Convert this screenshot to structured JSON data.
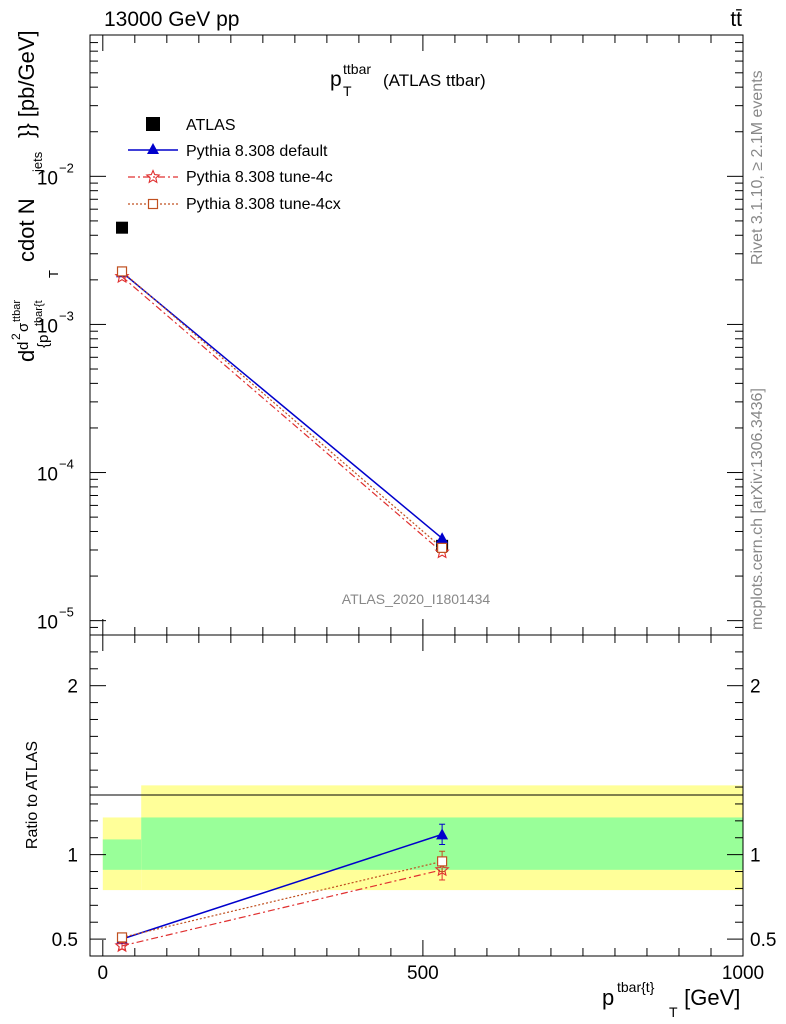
{
  "header": {
    "left": "13000 GeV pp",
    "right": "tt̄"
  },
  "side_labels": {
    "rivet": "Rivet 3.1.10, ≥ 2.1M events",
    "mcplots": "mcplots.cern.ch [arXiv:1306.3436]"
  },
  "analysis_id": "ATLAS_2020_I1801434",
  "plot_title": {
    "main": "p",
    "sup": "ttbar",
    "sub": "T",
    "rest": "(ATLAS ttbar)"
  },
  "y_axis_label": {
    "part1": "d",
    "part2": "d",
    "sigma": "σ",
    "sigma_sup": "ttbar",
    "sq": "2",
    "braced_p": "{p",
    "tbar": "tbar{t",
    "T_sub": "T",
    "cdot": "cdot N",
    "jets": "jets",
    "tail": "}} [pb/GeV]"
  },
  "x_axis_label": {
    "main": "p",
    "sup": "tbar{t}",
    "sub": "T",
    "tail": " [GeV]"
  },
  "ratio_label": "Ratio to ATLAS",
  "legend": [
    {
      "label": "ATLAS",
      "color": "#000000",
      "marker": "square-filled"
    },
    {
      "label": "Pythia 8.308 default",
      "color": "#0000cc",
      "marker": "triangle-filled"
    },
    {
      "label": "Pythia 8.308 tune-4c",
      "color": "#e03030",
      "marker": "star-open"
    },
    {
      "label": "Pythia 8.308 tune-4cx",
      "color": "#c05020",
      "marker": "square-open"
    }
  ],
  "chart_data": {
    "type": "scatter",
    "x_unit": "GeV",
    "main": {
      "yscale": "log",
      "ylim": [
        8e-06,
        0.09
      ],
      "y_ticks": [
        {
          "value": 1e-05,
          "base": "10",
          "exp": "−5"
        },
        {
          "value": 0.0001,
          "base": "10",
          "exp": "−4"
        },
        {
          "value": 0.001,
          "base": "10",
          "exp": "−3"
        },
        {
          "value": 0.01,
          "base": "10",
          "exp": "−2"
        }
      ]
    },
    "ratio": {
      "ylim": [
        0.4,
        2.3
      ],
      "y_ticks": [
        0.5,
        1,
        2
      ],
      "y_tick_labels": [
        "0.5",
        "1",
        "2"
      ]
    },
    "xlim": [
      -20,
      1000
    ],
    "x_ticks": [
      0,
      500,
      1000
    ],
    "x_tick_labels": [
      "0",
      "500",
      "1000"
    ],
    "bins": [
      {
        "x_low": 0,
        "x_high": 60,
        "x_center": 30
      },
      {
        "x_low": 60,
        "x_high": 1000,
        "x_center": 530
      }
    ],
    "series": [
      {
        "name": "ATLAS",
        "color": "#000000",
        "marker": "square-filled",
        "x": [
          30,
          530
        ],
        "y": [
          0.0045,
          3.2e-05
        ]
      },
      {
        "name": "Pythia 8.308 default",
        "color": "#0000cc",
        "marker": "triangle-filled",
        "line": "solid",
        "x": [
          30,
          530
        ],
        "y": [
          0.00225,
          3.6e-05
        ],
        "ratio": [
          0.5,
          1.12
        ],
        "ratio_err": [
          0.02,
          0.06
        ]
      },
      {
        "name": "Pythia 8.308 tune-4c",
        "color": "#e03030",
        "marker": "star-open",
        "line": "dashdot",
        "x": [
          30,
          530
        ],
        "y": [
          0.0021,
          2.9e-05
        ],
        "ratio": [
          0.46,
          0.91
        ],
        "ratio_err": [
          0.02,
          0.06
        ]
      },
      {
        "name": "Pythia 8.308 tune-4cx",
        "color": "#c05020",
        "marker": "square-open",
        "line": "dotted",
        "x": [
          30,
          530
        ],
        "y": [
          0.00228,
          3.1e-05
        ],
        "ratio": [
          0.51,
          0.96
        ],
        "ratio_err": [
          0.02,
          0.06
        ]
      }
    ],
    "uncertainty_bands": {
      "inner_color": "#99ff99",
      "outer_color": "#ffff99",
      "bins": [
        {
          "x_low": 0,
          "x_high": 60,
          "inner": [
            0.91,
            1.09
          ],
          "outer": [
            0.79,
            1.22
          ]
        },
        {
          "x_low": 60,
          "x_high": 1000,
          "inner": [
            0.91,
            1.22
          ],
          "outer": [
            0.79,
            1.41
          ]
        }
      ]
    }
  }
}
